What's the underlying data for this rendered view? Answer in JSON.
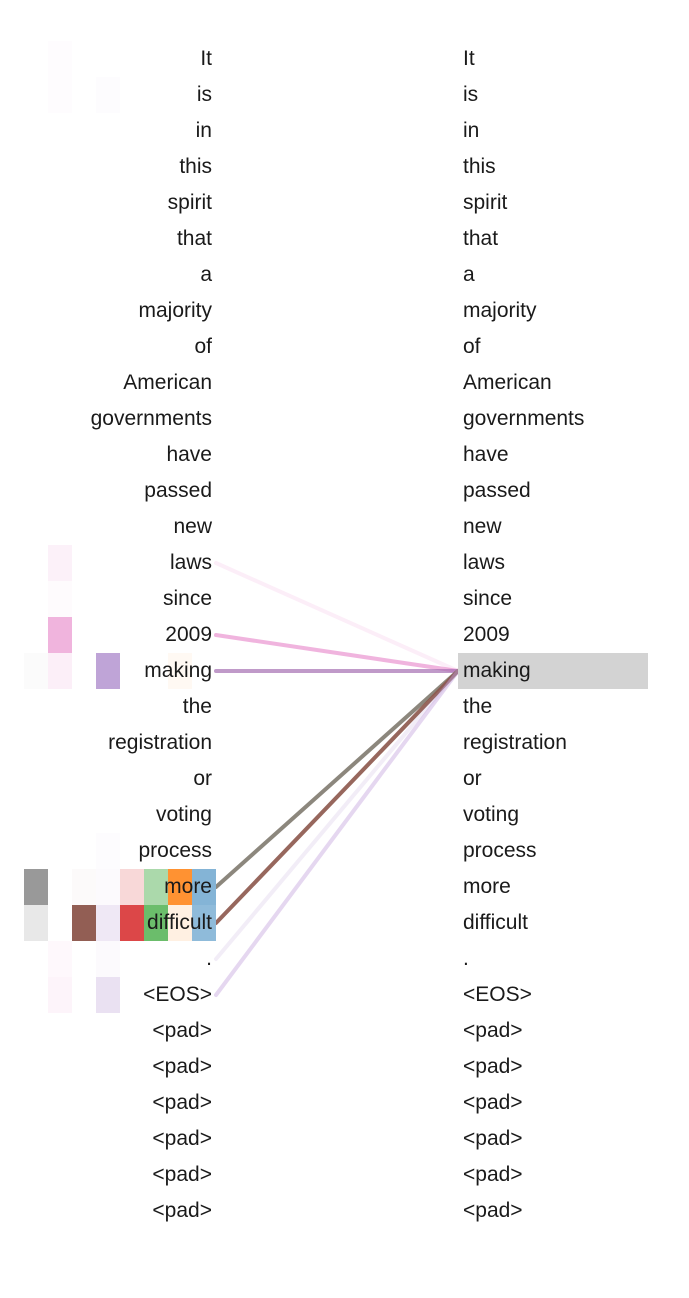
{
  "source_tokens": [
    "It",
    "is",
    "in",
    "this",
    "spirit",
    "that",
    "a",
    "majority",
    "of",
    "American",
    "governments",
    "have",
    "passed",
    "new",
    "laws",
    "since",
    "2009",
    "making",
    "the",
    "registration",
    "or",
    "voting",
    "process",
    "more",
    "difficult",
    ".",
    "<EOS>",
    "<pad>",
    "<pad>",
    "<pad>",
    "<pad>",
    "<pad>",
    "<pad>"
  ],
  "target_tokens": [
    "It",
    "is",
    "in",
    "this",
    "spirit",
    "that",
    "a",
    "majority",
    "of",
    "American",
    "governments",
    "have",
    "passed",
    "new",
    "laws",
    "since",
    "2009",
    "making",
    "the",
    "registration",
    "or",
    "voting",
    "process",
    "more",
    "difficult",
    ".",
    "<EOS>",
    "<pad>",
    "<pad>",
    "<pad>",
    "<pad>",
    "<pad>",
    "<pad>"
  ],
  "selected_target_index": 17,
  "selected_target_token": "making",
  "highlight_color": "#d3d3d3",
  "head_colors": [
    "#7f7f7f",
    "#e377c2",
    "#8c564b",
    "#9467bd",
    "#d62728",
    "#2ca02c",
    "#ff7f0e",
    "#1f77b4"
  ],
  "heatmap": [
    {
      "row": 0,
      "cells": [
        {
          "head": 1,
          "weight": 0.02
        }
      ]
    },
    {
      "row": 1,
      "cells": [
        {
          "head": 1,
          "weight": 0.02
        },
        {
          "head": 3,
          "weight": 0.02
        }
      ]
    },
    {
      "row": 14,
      "cells": [
        {
          "head": 1,
          "weight": 0.1
        }
      ]
    },
    {
      "row": 15,
      "cells": [
        {
          "head": 1,
          "weight": 0.03
        }
      ]
    },
    {
      "row": 16,
      "cells": [
        {
          "head": 1,
          "weight": 0.55
        }
      ]
    },
    {
      "row": 17,
      "cells": [
        {
          "head": 0,
          "weight": 0.03
        },
        {
          "head": 1,
          "weight": 0.12
        },
        {
          "head": 3,
          "weight": 0.6
        },
        {
          "head": 6,
          "weight": 0.05
        }
      ]
    },
    {
      "row": 22,
      "cells": [
        {
          "head": 3,
          "weight": 0.02
        }
      ]
    },
    {
      "row": 23,
      "cells": [
        {
          "head": 0,
          "weight": 0.8
        },
        {
          "head": 2,
          "weight": 0.03
        },
        {
          "head": 3,
          "weight": 0.03
        },
        {
          "head": 4,
          "weight": 0.18
        },
        {
          "head": 5,
          "weight": 0.4
        },
        {
          "head": 6,
          "weight": 0.85
        },
        {
          "head": 7,
          "weight": 0.55
        }
      ]
    },
    {
      "row": 24,
      "cells": [
        {
          "head": 0,
          "weight": 0.18
        },
        {
          "head": 2,
          "weight": 0.95
        },
        {
          "head": 3,
          "weight": 0.15
        },
        {
          "head": 4,
          "weight": 0.85
        },
        {
          "head": 5,
          "weight": 0.7
        },
        {
          "head": 6,
          "weight": 0.12
        },
        {
          "head": 7,
          "weight": 0.5
        }
      ]
    },
    {
      "row": 25,
      "cells": [
        {
          "head": 1,
          "weight": 0.05
        },
        {
          "head": 3,
          "weight": 0.03
        }
      ]
    },
    {
      "row": 26,
      "cells": [
        {
          "head": 1,
          "weight": 0.08
        },
        {
          "head": 3,
          "weight": 0.2
        }
      ]
    }
  ],
  "links": [
    {
      "source_index": 14,
      "target_index": 17,
      "color": "#e377c2",
      "weight": 0.12
    },
    {
      "source_index": 16,
      "target_index": 17,
      "color": "#e377c2",
      "weight": 0.55
    },
    {
      "source_index": 17,
      "target_index": 17,
      "color": "#a56fb2",
      "weight": 0.7
    },
    {
      "source_index": 23,
      "target_index": 17,
      "color": "#7f7a6f",
      "weight": 0.9
    },
    {
      "source_index": 24,
      "target_index": 17,
      "color": "#8c564b",
      "weight": 0.9
    },
    {
      "source_index": 25,
      "target_index": 17,
      "color": "#9467bd",
      "weight": 0.05
    },
    {
      "source_index": 26,
      "target_index": 17,
      "color": "#c5a6dd",
      "weight": 0.45
    }
  ]
}
